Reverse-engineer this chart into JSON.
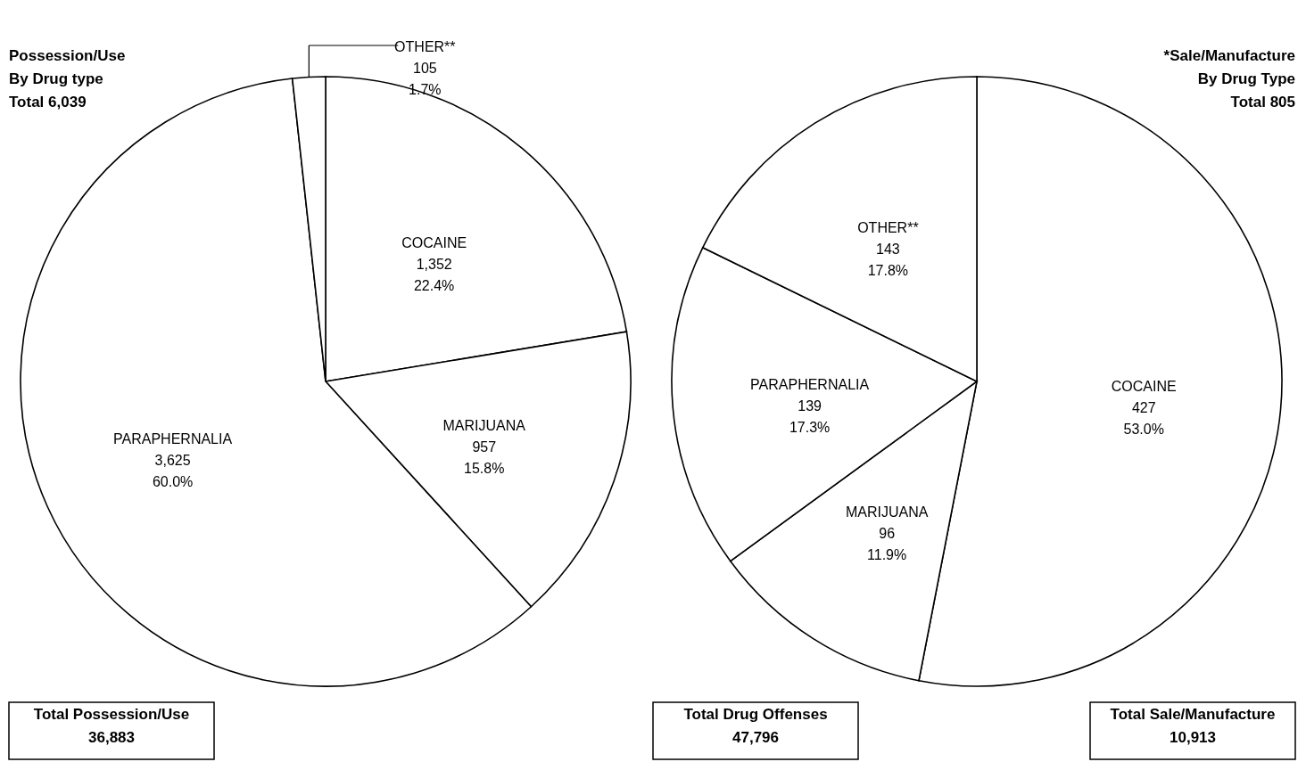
{
  "chart_data": [
    {
      "type": "pie",
      "title": "Possession/Use\nBy Drug type\nTotal  6,039",
      "categories": [
        "COCAINE",
        "MARIJUANA",
        "PARAPHERNALIA",
        "OTHER**"
      ],
      "values": [
        1352,
        957,
        3625,
        105
      ],
      "colors": [
        "#ffffff",
        "#ffffff",
        "#ffffff",
        "#ffffff"
      ],
      "value_labels": [
        "1,352\n22.4%",
        "957\n15.8%",
        "3,625\n60.0%",
        "105\n1.7%"
      ],
      "legend": false,
      "annotations": [
        "Total Possession/Use\n36,883"
      ]
    },
    {
      "type": "pie",
      "title": "*Sale/Manufacture\nBy Drug Type\nTotal  805",
      "categories": [
        "COCAINE",
        "MARIJUANA",
        "PARAPHERNALIA",
        "OTHER**"
      ],
      "values": [
        427,
        96,
        139,
        143
      ],
      "colors": [
        "#ffffff",
        "#ffffff",
        "#ffffff",
        "#ffffff"
      ],
      "value_labels": [
        "427\n53.0%",
        "96\n11.9%",
        "139\n17.3%",
        "143\n17.8%"
      ],
      "legend": false,
      "annotations": [
        "Total Drug Offenses\n47,796",
        "Total Sale/Manufacture\n10,913"
      ]
    }
  ]
}
